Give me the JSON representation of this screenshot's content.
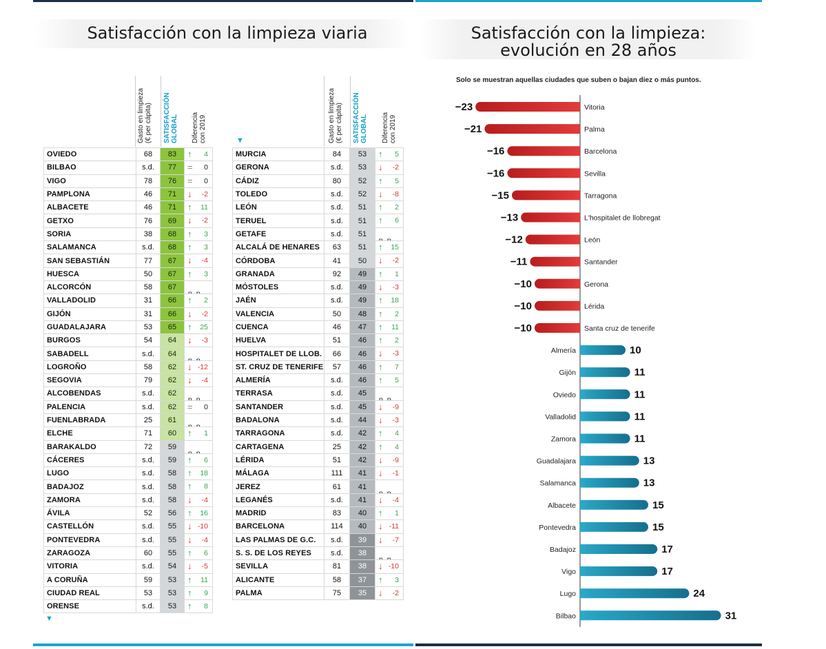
{
  "left_panel": {
    "title": "Satisfacción con la limpieza viaria",
    "col_spend": "Gasto en limpieza (€ per cápita)",
    "col_spend_1": "Gasto en limpieza",
    "col_spend_2": "(€ per cápita)",
    "col_sat_1": "SATISFACCIÓN",
    "col_sat_2": "GLOBAL",
    "col_diff_1": "Diferencia",
    "col_diff_2": "con 2019",
    "tables": [
      [
        {
          "city": "OVIEDO",
          "spend": "68",
          "sat": "83",
          "dir": "up",
          "diff": "4"
        },
        {
          "city": "BILBAO",
          "spend": "s.d.",
          "sat": "77",
          "dir": "eq",
          "diff": "0"
        },
        {
          "city": "VIGO",
          "spend": "78",
          "sat": "76",
          "dir": "eq",
          "diff": "0"
        },
        {
          "city": "PAMPLONA",
          "spend": "46",
          "sat": "71",
          "dir": "down",
          "diff": "-2"
        },
        {
          "city": "ALBACETE",
          "spend": "46",
          "sat": "71",
          "dir": "up",
          "diff": "11"
        },
        {
          "city": "GETXO",
          "spend": "76",
          "sat": "69",
          "dir": "down",
          "diff": "-2"
        },
        {
          "city": "SORIA",
          "spend": "38",
          "sat": "68",
          "dir": "up",
          "diff": "3"
        },
        {
          "city": "SALAMANCA",
          "spend": "s.d.",
          "sat": "68",
          "dir": "up",
          "diff": "3"
        },
        {
          "city": "SAN SEBASTIÁN",
          "spend": "77",
          "sat": "67",
          "dir": "down",
          "diff": "-4"
        },
        {
          "city": "HUESCA",
          "spend": "50",
          "sat": "67",
          "dir": "up",
          "diff": "3"
        },
        {
          "city": "ALCORCÓN",
          "spend": "58",
          "sat": "67",
          "dir": "np",
          "diff": "n.p."
        },
        {
          "city": "VALLADOLID",
          "spend": "31",
          "sat": "66",
          "dir": "up",
          "diff": "2"
        },
        {
          "city": "GIJÓN",
          "spend": "31",
          "sat": "66",
          "dir": "down",
          "diff": "-2"
        },
        {
          "city": "GUADALAJARA",
          "spend": "53",
          "sat": "65",
          "dir": "up",
          "diff": "25"
        },
        {
          "city": "BURGOS",
          "spend": "54",
          "sat": "64",
          "dir": "down",
          "diff": "-3"
        },
        {
          "city": "SABADELL",
          "spend": "s.d.",
          "sat": "64",
          "dir": "np",
          "diff": "n.p."
        },
        {
          "city": "LOGROÑO",
          "spend": "58",
          "sat": "62",
          "dir": "down",
          "diff": "-12"
        },
        {
          "city": "SEGOVIA",
          "spend": "79",
          "sat": "62",
          "dir": "down",
          "diff": "-4"
        },
        {
          "city": "ALCOBENDAS",
          "spend": "s.d.",
          "sat": "62",
          "dir": "np",
          "diff": "n.p."
        },
        {
          "city": "PALENCIA",
          "spend": "s.d.",
          "sat": "62",
          "dir": "eq",
          "diff": "0"
        },
        {
          "city": "FUENLABRADA",
          "spend": "25",
          "sat": "61",
          "dir": "np",
          "diff": "n.p."
        },
        {
          "city": "ELCHE",
          "spend": "71",
          "sat": "60",
          "dir": "up",
          "diff": "1"
        },
        {
          "city": "BARAKALDO",
          "spend": "72",
          "sat": "59",
          "dir": "np",
          "diff": "n.p."
        },
        {
          "city": "CÁCERES",
          "spend": "s.d.",
          "sat": "59",
          "dir": "up",
          "diff": "6"
        },
        {
          "city": "LUGO",
          "spend": "s.d.",
          "sat": "58",
          "dir": "up",
          "diff": "18"
        },
        {
          "city": "BADAJOZ",
          "spend": "s.d.",
          "sat": "58",
          "dir": "up",
          "diff": "8"
        },
        {
          "city": "ZAMORA",
          "spend": "s.d.",
          "sat": "58",
          "dir": "down",
          "diff": "-4"
        },
        {
          "city": "ÁVILA",
          "spend": "52",
          "sat": "56",
          "dir": "up",
          "diff": "16"
        },
        {
          "city": "CASTELLÓN",
          "spend": "s.d.",
          "sat": "55",
          "dir": "down",
          "diff": "-10"
        },
        {
          "city": "PONTEVEDRA",
          "spend": "s.d.",
          "sat": "55",
          "dir": "down",
          "diff": "-4"
        },
        {
          "city": "ZARAGOZA",
          "spend": "60",
          "sat": "55",
          "dir": "up",
          "diff": "6"
        },
        {
          "city": "VITORIA",
          "spend": "s.d.",
          "sat": "54",
          "dir": "down",
          "diff": "-5"
        },
        {
          "city": "A CORUÑA",
          "spend": "59",
          "sat": "53",
          "dir": "up",
          "diff": "11"
        },
        {
          "city": "CIUDAD REAL",
          "spend": "53",
          "sat": "53",
          "dir": "up",
          "diff": "9"
        },
        {
          "city": "ORENSE",
          "spend": "s.d.",
          "sat": "53",
          "dir": "up",
          "diff": "8"
        }
      ],
      [
        {
          "city": "MURCIA",
          "spend": "84",
          "sat": "53",
          "dir": "up",
          "diff": "5"
        },
        {
          "city": "GERONA",
          "spend": "s.d.",
          "sat": "53",
          "dir": "down",
          "diff": "-2"
        },
        {
          "city": "CÁDIZ",
          "spend": "80",
          "sat": "52",
          "dir": "up",
          "diff": "5"
        },
        {
          "city": "TOLEDO",
          "spend": "s.d.",
          "sat": "52",
          "dir": "down",
          "diff": "-8"
        },
        {
          "city": "LEÓN",
          "spend": "s.d.",
          "sat": "51",
          "dir": "up",
          "diff": "2"
        },
        {
          "city": "TERUEL",
          "spend": "s.d.",
          "sat": "51",
          "dir": "up",
          "diff": "6"
        },
        {
          "city": "GETAFE",
          "spend": "s.d.",
          "sat": "51",
          "dir": "np",
          "diff": "n.p."
        },
        {
          "city": "ALCALÁ DE HENARES",
          "spend": "63",
          "sat": "51",
          "dir": "up",
          "diff": "15"
        },
        {
          "city": "CÓRDOBA",
          "spend": "41",
          "sat": "50",
          "dir": "down",
          "diff": "-2"
        },
        {
          "city": "GRANADA",
          "spend": "92",
          "sat": "49",
          "dir": "up",
          "diff": "1"
        },
        {
          "city": "MÓSTOLES",
          "spend": "s.d.",
          "sat": "49",
          "dir": "down",
          "diff": "-3"
        },
        {
          "city": "JAÉN",
          "spend": "s.d.",
          "sat": "49",
          "dir": "up",
          "diff": "18"
        },
        {
          "city": "VALENCIA",
          "spend": "50",
          "sat": "48",
          "dir": "up",
          "diff": "2"
        },
        {
          "city": "CUENCA",
          "spend": "46",
          "sat": "47",
          "dir": "up",
          "diff": "11"
        },
        {
          "city": "HUELVA",
          "spend": "51",
          "sat": "46",
          "dir": "up",
          "diff": "2"
        },
        {
          "city": "HOSPITALET DE LLOB.",
          "spend": "66",
          "sat": "46",
          "dir": "down",
          "diff": "-3"
        },
        {
          "city": "ST. CRUZ DE TENERIFE",
          "spend": "57",
          "sat": "46",
          "dir": "up",
          "diff": "7"
        },
        {
          "city": "ALMERÍA",
          "spend": "s.d.",
          "sat": "46",
          "dir": "up",
          "diff": "5"
        },
        {
          "city": "TERRASA",
          "spend": "s.d.",
          "sat": "45",
          "dir": "np",
          "diff": "n.p."
        },
        {
          "city": "SANTANDER",
          "spend": "s.d.",
          "sat": "45",
          "dir": "down",
          "diff": "-9"
        },
        {
          "city": "BADALONA",
          "spend": "s.d.",
          "sat": "44",
          "dir": "down",
          "diff": "-3"
        },
        {
          "city": "TARRAGONA",
          "spend": "s.d.",
          "sat": "42",
          "dir": "up",
          "diff": "4"
        },
        {
          "city": "CARTAGENA",
          "spend": "25",
          "sat": "42",
          "dir": "up",
          "diff": "4"
        },
        {
          "city": "LÉRIDA",
          "spend": "51",
          "sat": "42",
          "dir": "down",
          "diff": "-9"
        },
        {
          "city": "MÁLAGA",
          "spend": "111",
          "sat": "41",
          "dir": "down",
          "diff": "-1"
        },
        {
          "city": "JEREZ",
          "spend": "61",
          "sat": "41",
          "dir": "np",
          "diff": "n.p."
        },
        {
          "city": "LEGANÉS",
          "spend": "s.d.",
          "sat": "41",
          "dir": "down",
          "diff": "-4"
        },
        {
          "city": "MADRID",
          "spend": "83",
          "sat": "40",
          "dir": "up",
          "diff": "1"
        },
        {
          "city": "BARCELONA",
          "spend": "114",
          "sat": "40",
          "dir": "down",
          "diff": "-11"
        },
        {
          "city": "LAS PALMAS DE G.C.",
          "spend": "s.d.",
          "sat": "39",
          "dir": "down",
          "diff": "-7"
        },
        {
          "city": "S. S. DE LOS REYES",
          "spend": "s.d.",
          "sat": "38",
          "dir": "np",
          "diff": "n.p."
        },
        {
          "city": "SEVILLA",
          "spend": "81",
          "sat": "38",
          "dir": "down",
          "diff": "-10"
        },
        {
          "city": "ALICANTE",
          "spend": "58",
          "sat": "37",
          "dir": "up",
          "diff": "3"
        },
        {
          "city": "PALMA",
          "spend": "75",
          "sat": "35",
          "dir": "down",
          "diff": "-2"
        }
      ]
    ]
  },
  "chart_data": {
    "type": "bar",
    "orientation": "horizontal-diverging",
    "title": "Satisfacción con la limpieza: evolución en 28 años",
    "title_line1": "Satisfacción con la limpieza:",
    "title_line2": "evolución en 28 años",
    "subtitle": "Solo se muestran aquellas ciudades que suben o bajan diez o más puntos.",
    "categories": [
      "Vitoria",
      "Palma",
      "Barcelona",
      "Sevilla",
      "Tarragona",
      "L'hospitalet de llobregat",
      "León",
      "Santander",
      "Gerona",
      "Lérida",
      "Santa cruz de tenerife",
      "Almería",
      "Gijón",
      "Oviedo",
      "Valladolid",
      "Zamora",
      "Guadalajara",
      "Salamanca",
      "Albacete",
      "Pontevedra",
      "Badajoz",
      "Vigo",
      "Lugo",
      "Bilbao"
    ],
    "values": [
      -23,
      -21,
      -16,
      -16,
      -15,
      -13,
      -12,
      -11,
      -10,
      -10,
      -10,
      10,
      11,
      11,
      11,
      11,
      13,
      13,
      15,
      15,
      17,
      17,
      24,
      31
    ],
    "value_labels": [
      "−23",
      "−21",
      "−16",
      "−16",
      "−15",
      "−13",
      "−12",
      "−11",
      "−10",
      "−10",
      "−10",
      "10",
      "11",
      "11",
      "11",
      "11",
      "13",
      "13",
      "15",
      "15",
      "17",
      "17",
      "24",
      "31"
    ],
    "xlim": [
      -23,
      31
    ],
    "colors": {
      "negative": "#d42b2b",
      "positive": "#1892b0"
    }
  },
  "colors": {
    "accent_teal": "#1aa5cf",
    "sat_green_dark": "#8cc43e",
    "sat_green_light": "#c8e3a2",
    "sat_gray_light": "#d3d7d9",
    "sat_gray_mid": "#b4babd",
    "sat_gray_dark": "#8e9497",
    "up_green": "#35a64f",
    "down_red": "#d9322f"
  }
}
